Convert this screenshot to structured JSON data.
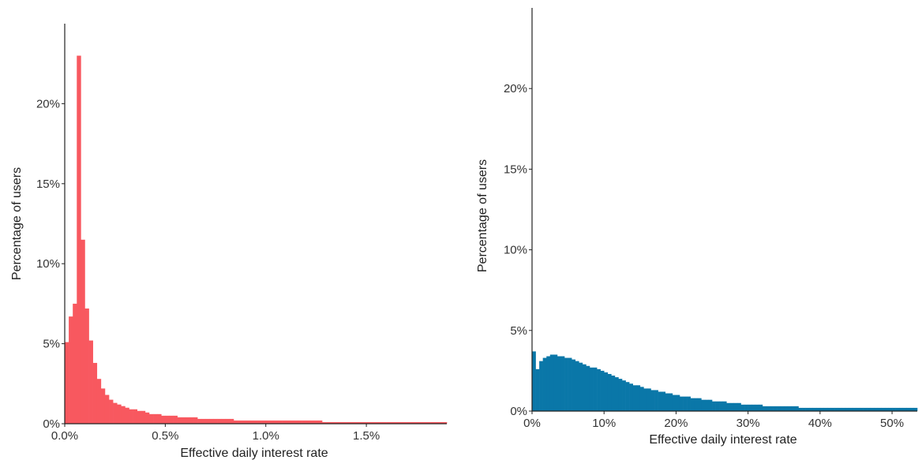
{
  "chart_data": [
    {
      "type": "histogram",
      "xlabel": "Effective daily interest rate",
      "ylabel": "Percentage of users",
      "xlim": [
        0,
        0.019
      ],
      "ylim": [
        0,
        0.25
      ],
      "xticks": [
        {
          "value": 0.0,
          "label": "0.0%"
        },
        {
          "value": 0.005,
          "label": "0.5%"
        },
        {
          "value": 0.01,
          "label": "1.0%"
        },
        {
          "value": 0.015,
          "label": "1.5%"
        }
      ],
      "yticks": [
        {
          "value": 0.0,
          "label": "0%"
        },
        {
          "value": 0.05,
          "label": "5%"
        },
        {
          "value": 0.1,
          "label": "10%"
        },
        {
          "value": 0.15,
          "label": "15%"
        },
        {
          "value": 0.2,
          "label": "20%"
        }
      ],
      "color": "#F8585F",
      "bin_width": 0.0002,
      "bin_start": 0.0,
      "values": [
        0.051,
        0.067,
        0.075,
        0.23,
        0.115,
        0.072,
        0.052,
        0.038,
        0.028,
        0.022,
        0.018,
        0.015,
        0.013,
        0.012,
        0.011,
        0.01,
        0.009,
        0.009,
        0.008,
        0.008,
        0.007,
        0.006,
        0.006,
        0.006,
        0.005,
        0.005,
        0.005,
        0.005,
        0.004,
        0.004,
        0.004,
        0.004,
        0.004,
        0.003,
        0.003,
        0.003,
        0.003,
        0.003,
        0.003,
        0.003,
        0.003,
        0.003,
        0.002,
        0.002,
        0.002,
        0.002,
        0.002,
        0.002,
        0.002,
        0.002,
        0.002,
        0.002,
        0.002,
        0.002,
        0.002,
        0.002,
        0.002,
        0.002,
        0.002,
        0.002,
        0.002,
        0.002,
        0.002,
        0.002,
        0.001,
        0.001,
        0.001,
        0.001,
        0.001,
        0.001,
        0.001,
        0.001,
        0.001,
        0.001,
        0.001,
        0.001,
        0.001,
        0.001,
        0.001,
        0.001,
        0.001,
        0.001,
        0.001,
        0.001,
        0.001,
        0.001,
        0.001,
        0.001,
        0.001,
        0.001,
        0.001,
        0.001,
        0.001,
        0.001,
        0.001
      ]
    },
    {
      "type": "histogram",
      "xlabel": "Effective daily interest rate",
      "ylabel": "Percentage of users",
      "xlim": [
        0,
        0.535
      ],
      "ylim": [
        0,
        0.25
      ],
      "xticks": [
        {
          "value": 0.0,
          "label": "0%"
        },
        {
          "value": 0.1,
          "label": "10%"
        },
        {
          "value": 0.2,
          "label": "20%"
        },
        {
          "value": 0.3,
          "label": "30%"
        },
        {
          "value": 0.4,
          "label": "40%"
        },
        {
          "value": 0.5,
          "label": "50%"
        }
      ],
      "yticks": [
        {
          "value": 0.0,
          "label": "0%"
        },
        {
          "value": 0.05,
          "label": "5%"
        },
        {
          "value": 0.1,
          "label": "10%"
        },
        {
          "value": 0.15,
          "label": "15%"
        },
        {
          "value": 0.2,
          "label": "20%"
        }
      ],
      "color": "#0A77A8",
      "bin_width": 0.005,
      "bin_start": 0.0,
      "values": [
        0.037,
        0.026,
        0.031,
        0.033,
        0.034,
        0.035,
        0.035,
        0.034,
        0.034,
        0.033,
        0.033,
        0.032,
        0.031,
        0.03,
        0.029,
        0.028,
        0.027,
        0.027,
        0.026,
        0.025,
        0.024,
        0.023,
        0.022,
        0.021,
        0.02,
        0.019,
        0.018,
        0.017,
        0.016,
        0.016,
        0.015,
        0.014,
        0.014,
        0.013,
        0.013,
        0.012,
        0.012,
        0.011,
        0.011,
        0.01,
        0.01,
        0.009,
        0.009,
        0.009,
        0.008,
        0.008,
        0.008,
        0.007,
        0.007,
        0.007,
        0.006,
        0.006,
        0.006,
        0.006,
        0.005,
        0.005,
        0.005,
        0.005,
        0.004,
        0.004,
        0.004,
        0.004,
        0.004,
        0.004,
        0.003,
        0.003,
        0.003,
        0.003,
        0.003,
        0.003,
        0.003,
        0.003,
        0.003,
        0.003,
        0.002,
        0.002,
        0.002,
        0.002,
        0.002,
        0.002,
        0.002,
        0.002,
        0.002,
        0.002,
        0.002,
        0.002,
        0.002,
        0.002,
        0.002,
        0.002,
        0.002,
        0.002,
        0.002,
        0.002,
        0.002,
        0.002,
        0.002,
        0.002,
        0.002,
        0.002,
        0.002,
        0.002,
        0.002,
        0.002,
        0.002,
        0.002,
        0.002
      ]
    }
  ]
}
